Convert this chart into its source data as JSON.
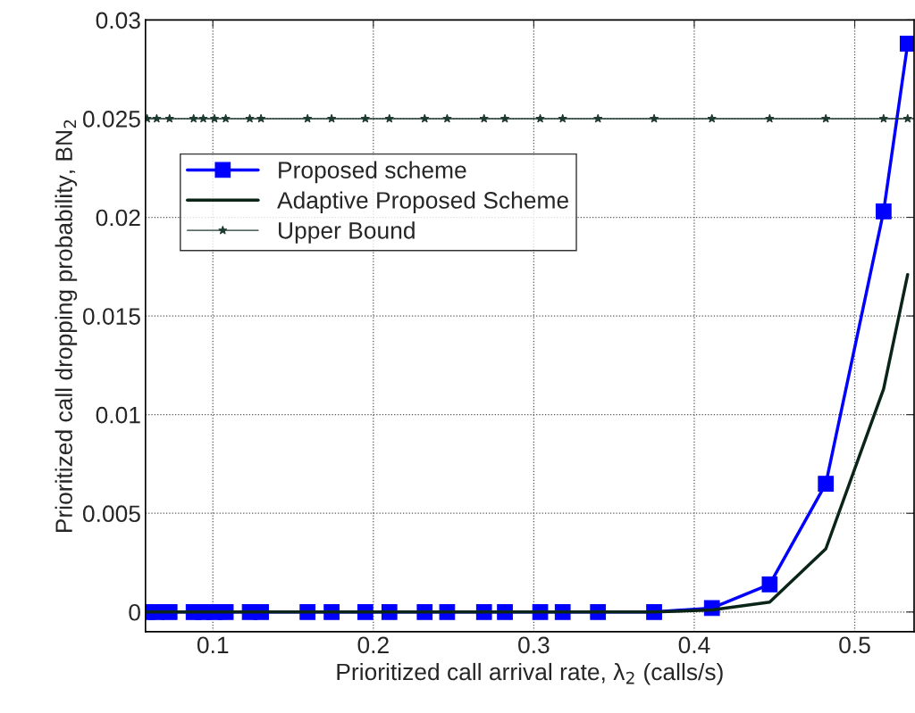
{
  "chart_data": {
    "type": "line",
    "xlabel": "Prioritized call arrival rate, λ$_{2}$ (calls/s)",
    "ylabel": "Prioritized call dropping probability, BN$_{2}$",
    "x": [
      0.059,
      0.065,
      0.073,
      0.088,
      0.094,
      0.101,
      0.108,
      0.123,
      0.13,
      0.159,
      0.174,
      0.195,
      0.21,
      0.232,
      0.246,
      0.269,
      0.282,
      0.304,
      0.318,
      0.34,
      0.375,
      0.411,
      0.447,
      0.482,
      0.518,
      0.533
    ],
    "series": [
      {
        "name": "Proposed scheme",
        "color": "#0000ff",
        "marker": "square",
        "line_style": "solid",
        "values": [
          0,
          0,
          0,
          0,
          0,
          0,
          0,
          0,
          0,
          0,
          0,
          0,
          0,
          0,
          0,
          0,
          0,
          0,
          0,
          0,
          0,
          0.0002,
          0.0014,
          0.0065,
          0.0203,
          0.0288
        ]
      },
      {
        "name": "Adaptive Proposed Scheme",
        "color": "#0a2418",
        "marker": "none",
        "line_style": "solid",
        "values": [
          0,
          0,
          0,
          0,
          0,
          0,
          0,
          0,
          0,
          0,
          0,
          0,
          0,
          0,
          0,
          0,
          0,
          0,
          0,
          0,
          0,
          0.0001,
          0.0005,
          0.0032,
          0.0113,
          0.0171
        ]
      },
      {
        "name": "Upper Bound",
        "color": "#1e3a30",
        "marker": "star",
        "line_style": "solid",
        "values": [
          0.025,
          0.025,
          0.025,
          0.025,
          0.025,
          0.025,
          0.025,
          0.025,
          0.025,
          0.025,
          0.025,
          0.025,
          0.025,
          0.025,
          0.025,
          0.025,
          0.025,
          0.025,
          0.025,
          0.025,
          0.025,
          0.025,
          0.025,
          0.025,
          0.025,
          0.025
        ]
      }
    ],
    "xlim": [
      0.058,
      0.537
    ],
    "ylim": [
      -0.001,
      0.03
    ],
    "xticks": [
      0.1,
      0.2,
      0.3,
      0.4,
      0.5
    ],
    "yticks": [
      0,
      0.005,
      0.01,
      0.015,
      0.02,
      0.025,
      0.03
    ],
    "grid": true,
    "legend": "upper left"
  }
}
